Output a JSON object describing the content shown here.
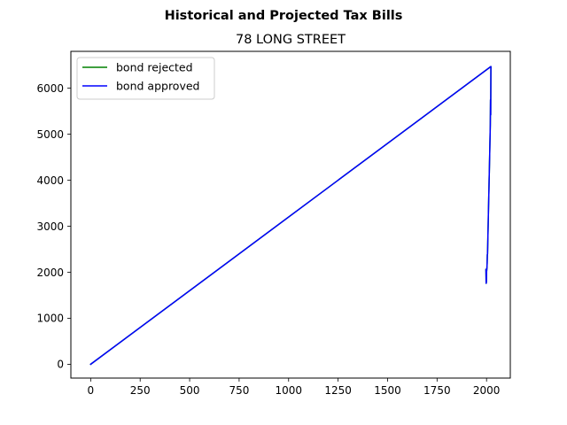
{
  "chart_data": {
    "type": "line",
    "suptitle": "Historical and Projected Tax Bills",
    "title": "78 LONG STREET",
    "xlabel": "",
    "ylabel": "",
    "xlim": [
      -100,
      2120
    ],
    "ylim": [
      -300,
      6800
    ],
    "xticks": [
      0,
      250,
      500,
      750,
      1000,
      1250,
      1500,
      1750,
      2000
    ],
    "yticks": [
      0,
      1000,
      2000,
      3000,
      4000,
      5000,
      6000
    ],
    "grid": false,
    "legend_placement": "top-left",
    "series": [
      {
        "name": "bond rejected",
        "color": "#008000",
        "x": [
          0,
          2022,
          2021,
          2020,
          2019,
          2018,
          2017,
          2016,
          2015,
          2014,
          2013,
          2012,
          2011,
          2010,
          2009,
          2008,
          2007,
          2006,
          2005,
          2004,
          2003,
          2002,
          2001,
          2000,
          1999,
          1998,
          1997
        ],
        "y": [
          0,
          6470,
          5420,
          5750,
          5200,
          5000,
          4800,
          4580,
          4380,
          4180,
          4000,
          3780,
          3600,
          3400,
          3200,
          3000,
          2800,
          2600,
          2400,
          2380,
          2200,
          2100,
          2050,
          2000,
          1780,
          1760,
          2060
        ]
      },
      {
        "name": "bond approved",
        "color": "#0000ff",
        "x": [
          0,
          2022,
          2021,
          2020,
          2019,
          2018,
          2017,
          2016,
          2015,
          2014,
          2013,
          2012,
          2011,
          2010,
          2009,
          2008,
          2007,
          2006,
          2005,
          2004,
          2003,
          2002,
          2001,
          2000,
          1999,
          1998,
          1997
        ],
        "y": [
          0,
          6470,
          5420,
          5750,
          5200,
          5000,
          4800,
          4580,
          4380,
          4180,
          4000,
          3780,
          3600,
          3400,
          3200,
          3000,
          2800,
          2600,
          2400,
          2380,
          2200,
          2100,
          2050,
          2000,
          1780,
          1760,
          2060
        ]
      }
    ]
  }
}
